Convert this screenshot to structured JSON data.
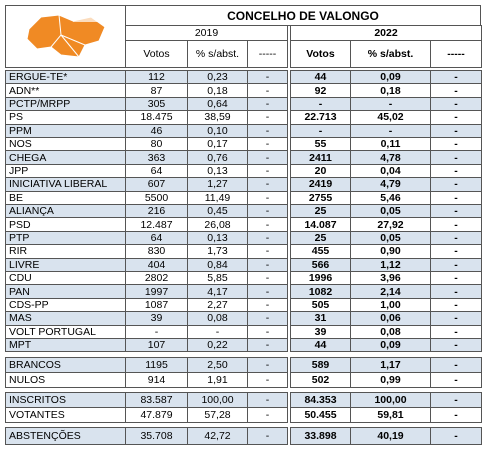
{
  "header": {
    "title": "CONCELHO DE VALONGO",
    "years": [
      "2019",
      "2022"
    ],
    "columns": [
      "Votos",
      "% s/abst.",
      "-----",
      "Votos",
      "% s/abst.",
      "-----"
    ]
  },
  "table": {
    "sections": [
      {
        "rows": [
          [
            "ERGUE-TE*",
            "112",
            "0,23",
            "-",
            "44",
            "0,09",
            "-"
          ],
          [
            "ADN**",
            "87",
            "0,18",
            "-",
            "92",
            "0,18",
            "-"
          ],
          [
            "PCTP/MRPP",
            "305",
            "0,64",
            "-",
            "-",
            "-",
            "-"
          ],
          [
            "PS",
            "18.475",
            "38,59",
            "-",
            "22.713",
            "45,02",
            "-"
          ],
          [
            "PPM",
            "46",
            "0,10",
            "-",
            "-",
            "-",
            "-"
          ],
          [
            "NOS",
            "80",
            "0,17",
            "-",
            "55",
            "0,11",
            "-"
          ],
          [
            "CHEGA",
            "363",
            "0,76",
            "-",
            "2411",
            "4,78",
            "-"
          ],
          [
            "JPP",
            "64",
            "0,13",
            "-",
            "20",
            "0,04",
            "-"
          ],
          [
            "INICIATIVA LIBERAL",
            "607",
            "1,27",
            "-",
            "2419",
            "4,79",
            "-"
          ],
          [
            "BE",
            "5500",
            "11,49",
            "-",
            "2755",
            "5,46",
            "-"
          ],
          [
            "ALIANÇA",
            "216",
            "0,45",
            "-",
            "25",
            "0,05",
            "-"
          ],
          [
            "PSD",
            "12.487",
            "26,08",
            "-",
            "14.087",
            "27,92",
            "-"
          ],
          [
            "PTP",
            "64",
            "0,13",
            "-",
            "25",
            "0,05",
            "-"
          ],
          [
            "RIR",
            "830",
            "1,73",
            "-",
            "455",
            "0,90",
            "-"
          ],
          [
            "LIVRE",
            "404",
            "0,84",
            "-",
            "566",
            "1,12",
            "-"
          ],
          [
            "CDU",
            "2802",
            "5,85",
            "-",
            "1996",
            "3,96",
            "-"
          ],
          [
            "PAN",
            "1997",
            "4,17",
            "-",
            "1082",
            "2,14",
            "-"
          ],
          [
            "CDS-PP",
            "1087",
            "2,27",
            "-",
            "505",
            "1,00",
            "-"
          ],
          [
            "MAS",
            "39",
            "0,08",
            "-",
            "31",
            "0,06",
            "-"
          ],
          [
            "VOLT PORTUGAL",
            "-",
            "-",
            "-",
            "39",
            "0,08",
            "-"
          ],
          [
            "MPT",
            "107",
            "0,22",
            "-",
            "44",
            "0,09",
            "-"
          ]
        ]
      },
      {
        "rows": [
          [
            "BRANCOS",
            "1195",
            "2,50",
            "-",
            "589",
            "1,17",
            "-"
          ],
          [
            "NULOS",
            "914",
            "1,91",
            "-",
            "502",
            "0,99",
            "-"
          ]
        ]
      },
      {
        "rows": [
          [
            "INSCRITOS",
            "83.587",
            "100,00",
            "-",
            "84.353",
            "100,00",
            "-"
          ],
          [
            "VOTANTES",
            "47.879",
            "57,28",
            "-",
            "50.455",
            "59,81",
            "-"
          ]
        ]
      },
      {
        "rows": [
          [
            "ABSTENÇÕES",
            "35.708",
            "42,72",
            "-",
            "33.898",
            "40,19",
            "-"
          ]
        ]
      }
    ]
  }
}
